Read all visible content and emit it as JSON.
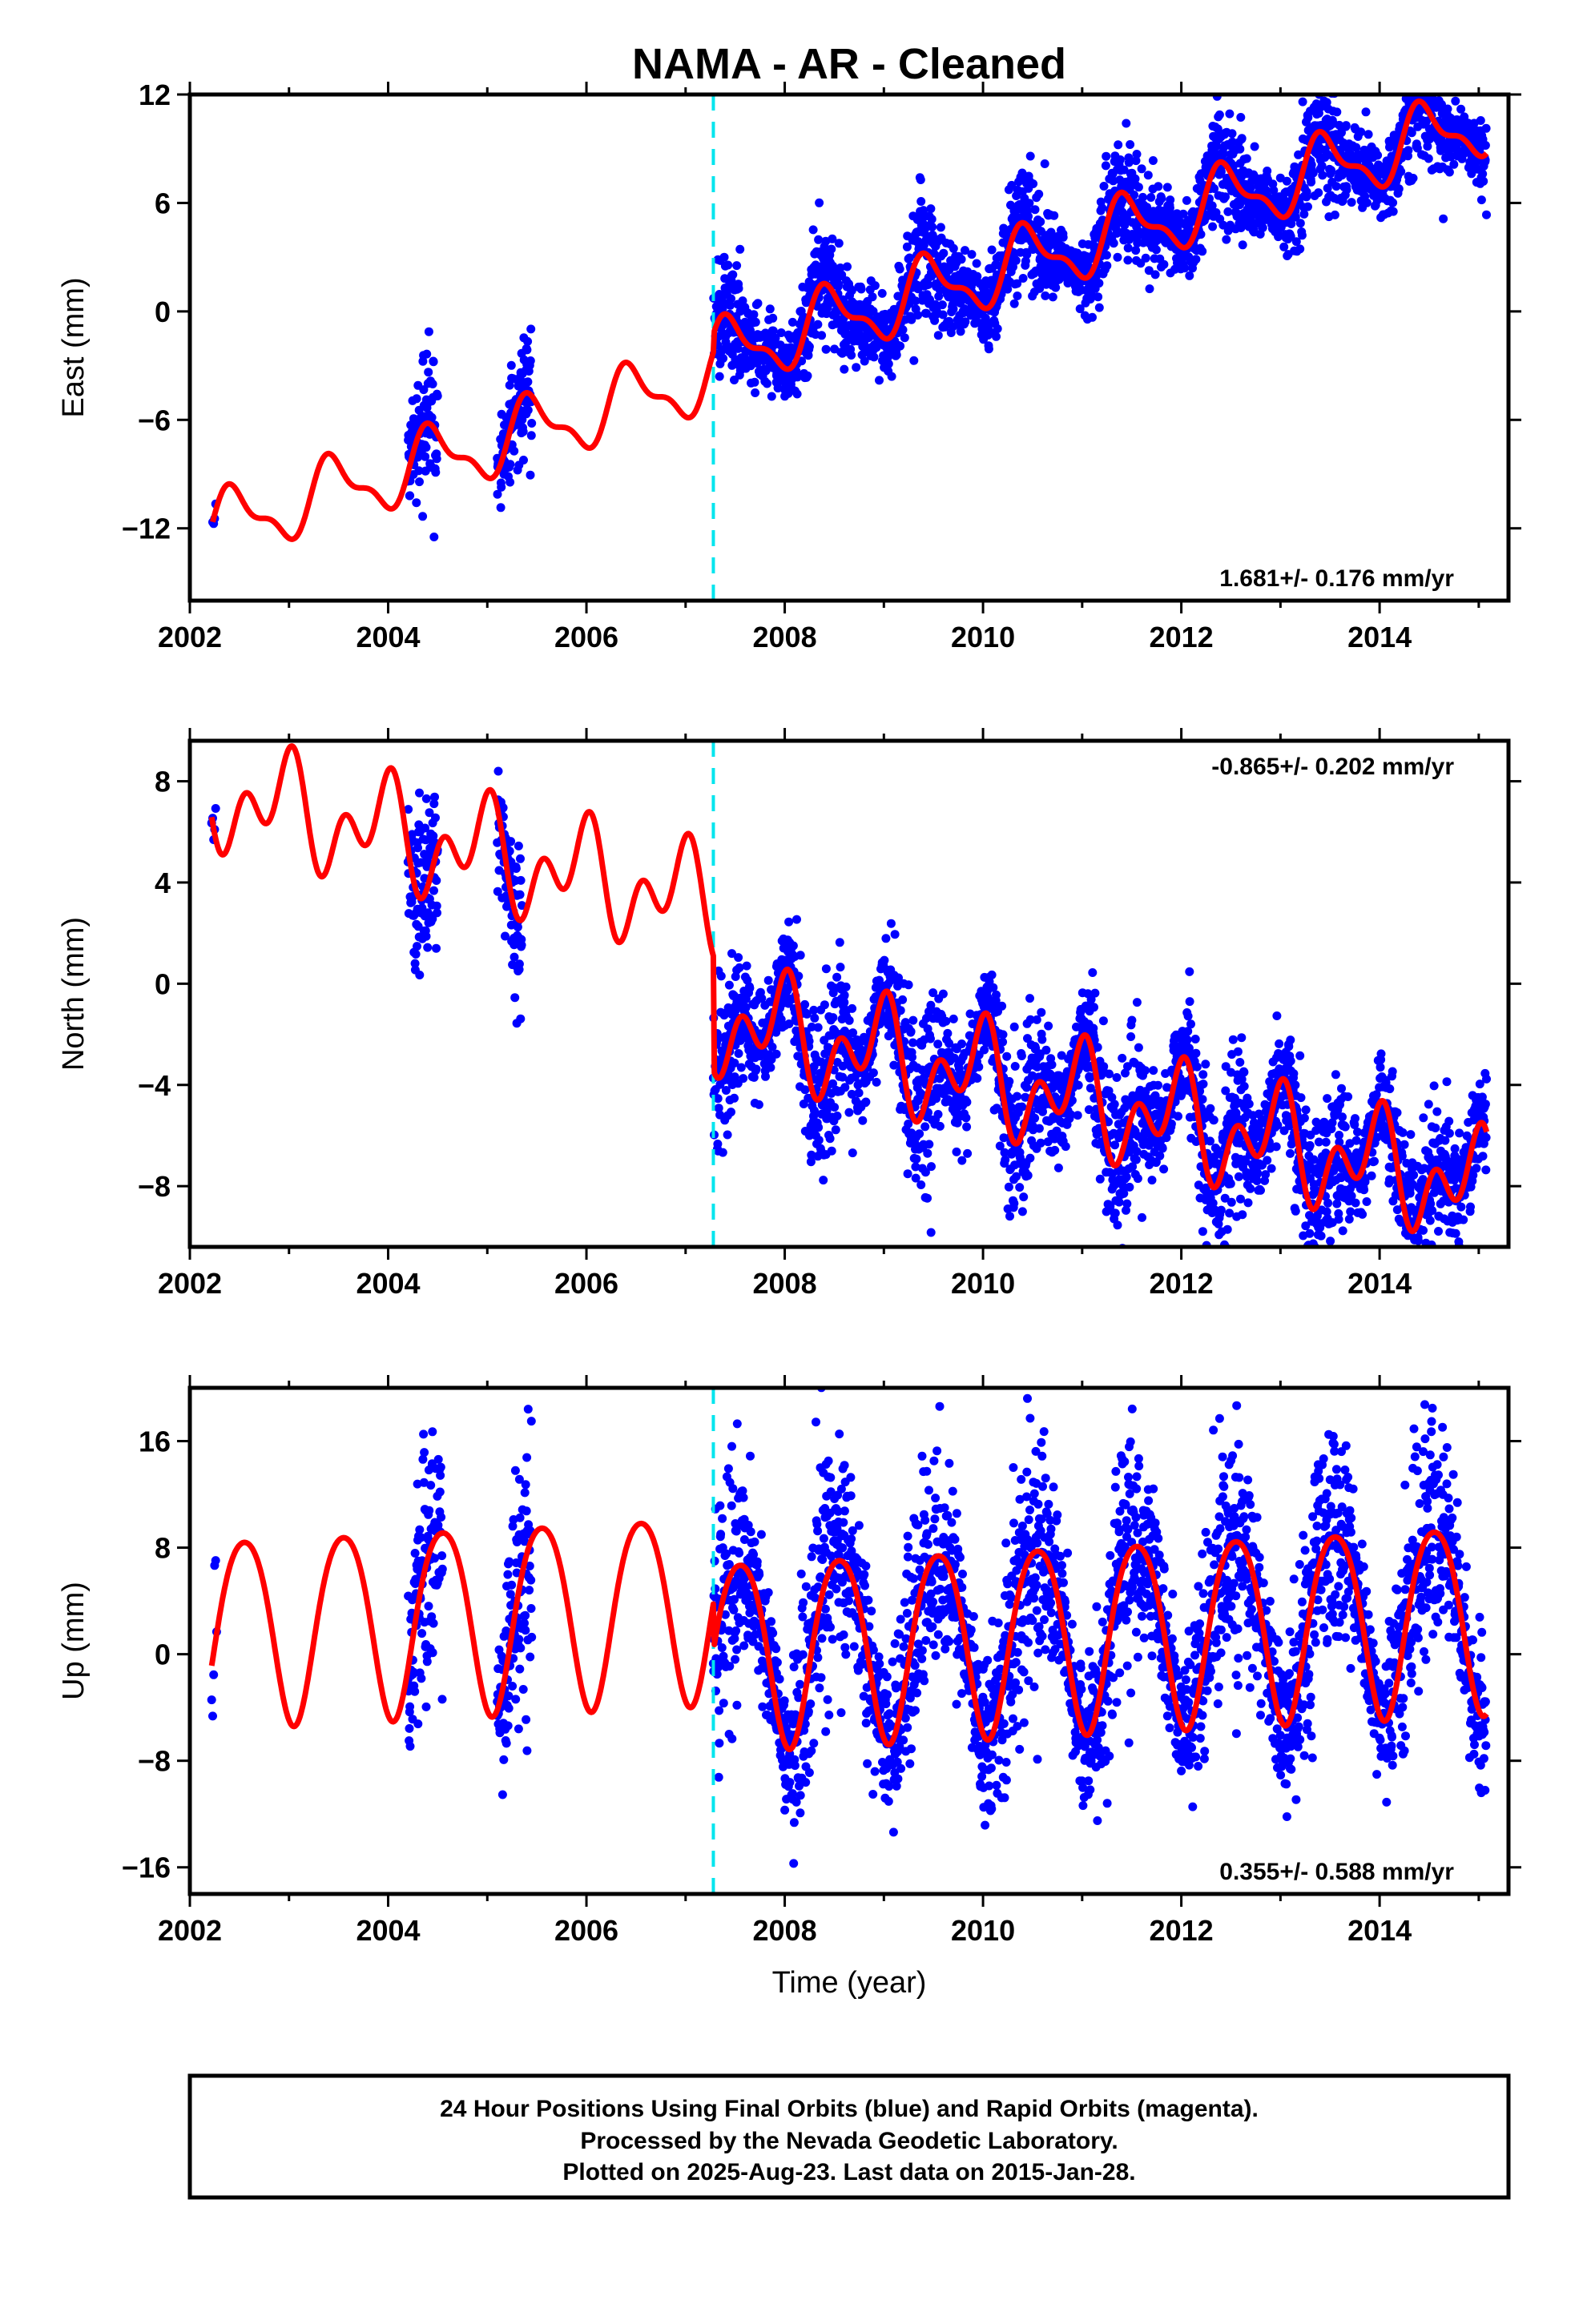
{
  "title": "NAMA  - AR - Cleaned",
  "colors": {
    "data": "#0000ff",
    "model": "#ff0000",
    "offset_line": "#00e5ee",
    "frame": "#000000"
  },
  "xlabel": "Time (year)",
  "caption": [
    "24 Hour Positions Using Final Orbits (blue) and Rapid Orbits (magenta).",
    "Processed by the Nevada Geodetic Laboratory.",
    "Plotted on 2025-Aug-23. Last data on 2015-Jan-28."
  ],
  "chart_data": [
    {
      "type": "scatter",
      "component": "East",
      "ylabel": "East (mm)",
      "rate_text": "1.681+/- 0.176 mm/yr",
      "xlim": [
        2002,
        2015.3
      ],
      "ylim": [
        -16,
        12
      ],
      "xticks": [
        2002,
        2004,
        2006,
        2008,
        2010,
        2012,
        2014
      ],
      "yticks": [
        -12,
        -6,
        0,
        6,
        12
      ],
      "offset_epoch": 2007.28,
      "data_segments": [
        [
          2002.23,
          2002.27
        ],
        [
          2004.2,
          2004.5
        ],
        [
          2005.1,
          2005.45
        ],
        [
          2007.28,
          2015.08
        ]
      ],
      "model": {
        "trend_mm_per_yr": 1.681,
        "value_at_2002": -12.4,
        "annual_amp": 1.7,
        "annual_peak": 0.45,
        "semiannual_amp": 0.7,
        "semiannual_peak": 0.35,
        "offset_at_break": 1.0
      },
      "scatter_sd": 1.3
    },
    {
      "type": "scatter",
      "component": "North",
      "ylabel": "North (mm)",
      "rate_text": "-0.865+/- 0.202 mm/yr",
      "xlim": [
        2002,
        2015.3
      ],
      "ylim": [
        -10.4,
        9.6
      ],
      "xticks": [
        2002,
        2004,
        2006,
        2008,
        2010,
        2012,
        2014
      ],
      "yticks": [
        -8,
        -4,
        0,
        4,
        8
      ],
      "offset_epoch": 2007.28,
      "data_segments": [
        [
          2002.22,
          2002.27
        ],
        [
          2004.2,
          2004.5
        ],
        [
          2005.1,
          2005.35
        ],
        [
          2007.28,
          2015.08
        ]
      ],
      "model": {
        "trend_mm_per_yr": -0.865,
        "value_at_2002": 7.7,
        "annual_amp": 1.4,
        "annual_peak": 0.95,
        "semiannual_amp": 1.4,
        "semiannual_peak": 0.05,
        "offset_at_break": -4.5
      },
      "scatter_sd": 1.3
    },
    {
      "type": "scatter",
      "component": "Up",
      "ylabel": "Up (mm)",
      "rate_text": "0.355+/- 0.588 mm/yr",
      "xlim": [
        2002,
        2015.3
      ],
      "ylim": [
        -18,
        20
      ],
      "xticks": [
        2002,
        2004,
        2006,
        2008,
        2010,
        2012,
        2014
      ],
      "yticks": [
        -16,
        -8,
        0,
        8,
        16
      ],
      "offset_epoch": 2007.28,
      "data_segments": [
        [
          2002.22,
          2002.27
        ],
        [
          2004.2,
          2004.55
        ],
        [
          2005.1,
          2005.45
        ],
        [
          2007.28,
          2015.08
        ]
      ],
      "model": {
        "trend_mm_per_yr": 0.355,
        "value_at_2002": 2.0,
        "annual_amp": 7.0,
        "annual_peak": 0.55,
        "semiannual_amp": 0.8,
        "semiannual_peak": 0.3,
        "offset_at_break": -3.5
      },
      "scatter_sd": 3.6
    }
  ]
}
